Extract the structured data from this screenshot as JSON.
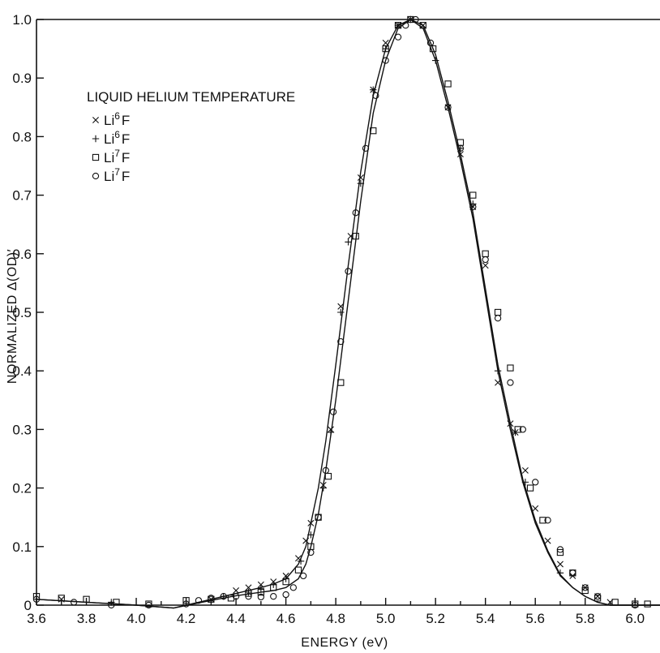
{
  "chart_data": {
    "type": "scatter",
    "title": "",
    "xlabel": "ENERGY (eV)",
    "ylabel": "NORMALIZED Δ(OD)′",
    "xlim": [
      3.6,
      6.1
    ],
    "ylim": [
      0,
      1.0
    ],
    "x_ticks": [
      3.6,
      3.8,
      4.0,
      4.2,
      4.4,
      4.6,
      4.8,
      5.0,
      5.2,
      5.4,
      5.6,
      5.8,
      6.0
    ],
    "x_tick_labels": [
      "3.6",
      "3.8",
      "4.0",
      "4.2",
      "4.4",
      "4.6",
      "4.8",
      "5.0",
      "5.2",
      "5.4",
      "5.6",
      "5.8",
      "6.0"
    ],
    "y_ticks": [
      0,
      0.1,
      0.2,
      0.3,
      0.4,
      0.5,
      0.6,
      0.7,
      0.8,
      0.9,
      1.0
    ],
    "y_tick_labels": [
      "0",
      "0.1",
      "0.2",
      "0.3",
      "0.4",
      "0.5",
      "0.6",
      "0.7",
      "0.8",
      "0.9",
      "1.0"
    ],
    "grid": false,
    "legend": {
      "title": "LIQUID HELIUM TEMPERATURE",
      "placement": "top-left",
      "entries": [
        {
          "marker": "x",
          "base": "Li",
          "sup": "6",
          "tail": "F"
        },
        {
          "marker": "+",
          "base": "Li",
          "sup": "6",
          "tail": "F"
        },
        {
          "marker": "square",
          "base": "Li",
          "sup": "7",
          "tail": "F"
        },
        {
          "marker": "circle",
          "base": "Li",
          "sup": "7",
          "tail": "F"
        }
      ]
    },
    "curves": [
      {
        "x": [
          3.6,
          3.8,
          4.0,
          4.15,
          4.3,
          4.4,
          4.5,
          4.55,
          4.6,
          4.65,
          4.68,
          4.7,
          4.73,
          4.76,
          4.8,
          4.85,
          4.9,
          4.95,
          5.0,
          5.05,
          5.1,
          5.15,
          5.2,
          5.25,
          5.3,
          5.35,
          5.4,
          5.45,
          5.5,
          5.55,
          5.6,
          5.65,
          5.7,
          5.75,
          5.8,
          5.85,
          5.9,
          6.0,
          6.1
        ],
        "y": [
          0.01,
          0.005,
          0.0,
          -0.005,
          0.01,
          0.02,
          0.03,
          0.036,
          0.045,
          0.07,
          0.1,
          0.14,
          0.2,
          0.28,
          0.41,
          0.58,
          0.74,
          0.87,
          0.95,
          0.99,
          1.0,
          0.985,
          0.93,
          0.85,
          0.76,
          0.66,
          0.53,
          0.4,
          0.3,
          0.21,
          0.14,
          0.09,
          0.05,
          0.03,
          0.015,
          0.005,
          0.0,
          0.0,
          0.0
        ]
      },
      {
        "x": [
          3.6,
          3.8,
          4.0,
          4.15,
          4.3,
          4.4,
          4.5,
          4.55,
          4.6,
          4.65,
          4.68,
          4.7,
          4.73,
          4.76,
          4.8,
          4.85,
          4.9,
          4.95,
          5.0,
          5.05,
          5.1,
          5.15,
          5.2,
          5.25,
          5.3,
          5.35,
          5.4,
          5.45,
          5.5,
          5.55,
          5.6,
          5.65,
          5.7,
          5.75,
          5.8,
          5.85,
          5.9,
          6.0,
          6.1
        ],
        "y": [
          0.01,
          0.005,
          0.0,
          -0.005,
          0.008,
          0.016,
          0.022,
          0.025,
          0.03,
          0.045,
          0.07,
          0.1,
          0.155,
          0.23,
          0.35,
          0.52,
          0.69,
          0.84,
          0.93,
          0.985,
          1.0,
          0.99,
          0.94,
          0.86,
          0.77,
          0.67,
          0.54,
          0.41,
          0.31,
          0.215,
          0.145,
          0.093,
          0.052,
          0.03,
          0.015,
          0.005,
          0.0,
          0.0,
          0.0
        ]
      }
    ],
    "series": [
      {
        "marker": "x",
        "x": [
          3.7,
          4.3,
          4.4,
          4.45,
          4.5,
          4.55,
          4.6,
          4.65,
          4.68,
          4.7,
          4.75,
          4.78,
          4.82,
          4.86,
          4.9,
          4.95,
          5.0,
          5.05,
          5.1,
          5.15,
          5.25,
          5.3,
          5.35,
          5.4,
          5.45,
          5.5,
          5.52,
          5.56,
          5.6,
          5.65,
          5.7,
          5.75,
          5.8,
          5.85,
          5.9
        ],
        "y": [
          0.01,
          0.01,
          0.025,
          0.03,
          0.035,
          0.04,
          0.05,
          0.08,
          0.11,
          0.14,
          0.205,
          0.3,
          0.51,
          0.63,
          0.73,
          0.88,
          0.96,
          0.99,
          1.0,
          0.99,
          0.85,
          0.77,
          0.68,
          0.58,
          0.38,
          0.31,
          0.295,
          0.23,
          0.165,
          0.11,
          0.07,
          0.05,
          0.03,
          0.015,
          0.005
        ]
      },
      {
        "marker": "+",
        "x": [
          3.9,
          4.35,
          4.45,
          4.5,
          4.55,
          4.6,
          4.66,
          4.7,
          4.75,
          4.78,
          4.82,
          4.85,
          4.9,
          4.95,
          5.0,
          5.05,
          5.1,
          5.2,
          5.3,
          5.35,
          5.45,
          5.52,
          5.56,
          5.7
        ],
        "y": [
          0.005,
          0.015,
          0.022,
          0.028,
          0.035,
          0.045,
          0.075,
          0.12,
          0.2,
          0.295,
          0.5,
          0.62,
          0.72,
          0.88,
          0.95,
          0.99,
          1.0,
          0.93,
          0.78,
          0.685,
          0.4,
          0.295,
          0.21,
          0.055
        ]
      },
      {
        "marker": "square",
        "x": [
          3.6,
          3.7,
          3.8,
          3.92,
          4.05,
          4.2,
          4.3,
          4.38,
          4.45,
          4.5,
          4.55,
          4.6,
          4.65,
          4.7,
          4.73,
          4.77,
          4.82,
          4.88,
          4.95,
          5.0,
          5.05,
          5.1,
          5.15,
          5.19,
          5.25,
          5.3,
          5.35,
          5.4,
          5.45,
          5.5,
          5.53,
          5.58,
          5.63,
          5.7,
          5.75,
          5.8,
          5.85,
          5.92,
          6.0,
          6.05
        ],
        "y": [
          0.015,
          0.012,
          0.01,
          0.005,
          0.002,
          0.008,
          0.01,
          0.012,
          0.02,
          0.022,
          0.03,
          0.04,
          0.06,
          0.1,
          0.15,
          0.22,
          0.38,
          0.63,
          0.81,
          0.95,
          0.99,
          1.0,
          0.99,
          0.95,
          0.89,
          0.79,
          0.7,
          0.6,
          0.5,
          0.405,
          0.3,
          0.2,
          0.145,
          0.09,
          0.055,
          0.025,
          0.012,
          0.005,
          0.002,
          0.002
        ]
      },
      {
        "marker": "circle",
        "x": [
          3.6,
          3.75,
          3.9,
          4.05,
          4.2,
          4.25,
          4.3,
          4.35,
          4.4,
          4.45,
          4.5,
          4.55,
          4.6,
          4.63,
          4.67,
          4.7,
          4.73,
          4.76,
          4.79,
          4.82,
          4.85,
          4.88,
          4.92,
          4.96,
          5.0,
          5.05,
          5.08,
          5.12,
          5.18,
          5.25,
          5.3,
          5.35,
          5.4,
          5.45,
          5.5,
          5.55,
          5.6,
          5.65,
          5.7,
          5.75,
          5.8,
          5.85,
          6.0
        ],
        "y": [
          0.01,
          0.005,
          0.0,
          0.0,
          0.002,
          0.008,
          0.012,
          0.015,
          0.015,
          0.015,
          0.014,
          0.015,
          0.018,
          0.03,
          0.05,
          0.09,
          0.15,
          0.23,
          0.33,
          0.45,
          0.57,
          0.67,
          0.78,
          0.87,
          0.93,
          0.97,
          0.99,
          1.0,
          0.96,
          0.85,
          0.78,
          0.68,
          0.59,
          0.49,
          0.38,
          0.3,
          0.21,
          0.145,
          0.095,
          0.055,
          0.03,
          0.015,
          0.0
        ]
      }
    ]
  }
}
